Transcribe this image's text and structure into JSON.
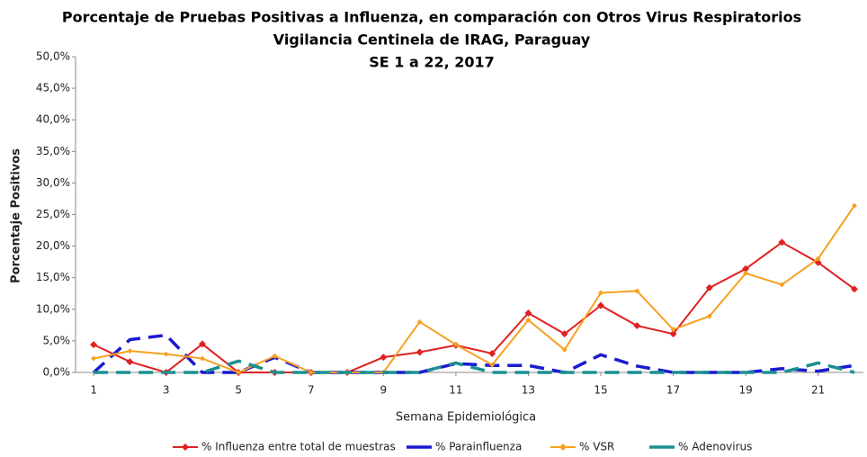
{
  "chart_data": {
    "type": "line",
    "title": [
      "Porcentaje de Pruebas Positivas a Influenza, en comparación con Otros Virus Respiratorios",
      "Vigilancia Centinela de IRAG, Paraguay",
      "SE 1 a 22, 2017"
    ],
    "x_label": "Semana Epidemiológica",
    "y_label": "Porcentaje Positivos",
    "x": [
      1,
      2,
      3,
      4,
      5,
      6,
      7,
      8,
      9,
      10,
      11,
      12,
      13,
      14,
      15,
      16,
      17,
      18,
      19,
      20,
      21,
      22
    ],
    "xlim": [
      0.5,
      22.25
    ],
    "xticks": [
      1,
      3,
      5,
      7,
      9,
      11,
      13,
      15,
      17,
      19,
      21
    ],
    "ylim": [
      0,
      50
    ],
    "yticks": [
      {
        "value": 0,
        "label": "0,0%"
      },
      {
        "value": 5,
        "label": "5,0%"
      },
      {
        "value": 10,
        "label": "10,0%"
      },
      {
        "value": 15,
        "label": "15,0%"
      },
      {
        "value": 20,
        "label": "20,0%"
      },
      {
        "value": 25,
        "label": "25,0%"
      },
      {
        "value": 30,
        "label": "30,0%"
      },
      {
        "value": 35,
        "label": "35,0%"
      },
      {
        "value": 40,
        "label": "40,0%"
      },
      {
        "value": 45,
        "label": "45,0%"
      },
      {
        "value": 50,
        "label": "50,0%"
      }
    ],
    "legend": "bottom",
    "series": [
      {
        "name": "% Influenza entre total de muestras",
        "color": "#e02020",
        "marker": true,
        "dash": false,
        "values": [
          4.4,
          1.7,
          0,
          4.5,
          0,
          0,
          0,
          0,
          2.4,
          3.2,
          4.3,
          3.0,
          9.4,
          6.1,
          10.6,
          7.4,
          6.1,
          13.4,
          16.4,
          20.6,
          17.4,
          13.2
        ]
      },
      {
        "name": "% Parainfluenza",
        "color": "#1a1ad0",
        "marker": false,
        "dash": true,
        "values": [
          0,
          5.2,
          5.9,
          0,
          0,
          2.4,
          0,
          0,
          0,
          0,
          1.4,
          1.1,
          1.1,
          0,
          2.8,
          1.0,
          0,
          0,
          0,
          0.6,
          0.2,
          1.1
        ]
      },
      {
        "name": "% VSR",
        "color": "#f7a020",
        "marker": true,
        "dash": false,
        "values": [
          2.2,
          3.4,
          2.9,
          2.2,
          0,
          2.6,
          0,
          0,
          0,
          8.0,
          4.4,
          1.2,
          8.3,
          3.6,
          12.6,
          12.9,
          6.8,
          8.9,
          15.7,
          13.9,
          18.0,
          26.4
        ]
      },
      {
        "name": "% Adenovirus",
        "color": "#1a9090",
        "marker": false,
        "dash": true,
        "values": [
          0,
          0,
          0,
          0,
          1.8,
          0,
          0,
          0,
          0,
          0,
          1.5,
          0,
          0,
          0,
          0,
          0,
          0,
          0,
          0,
          0,
          1.5,
          0
        ]
      }
    ]
  }
}
